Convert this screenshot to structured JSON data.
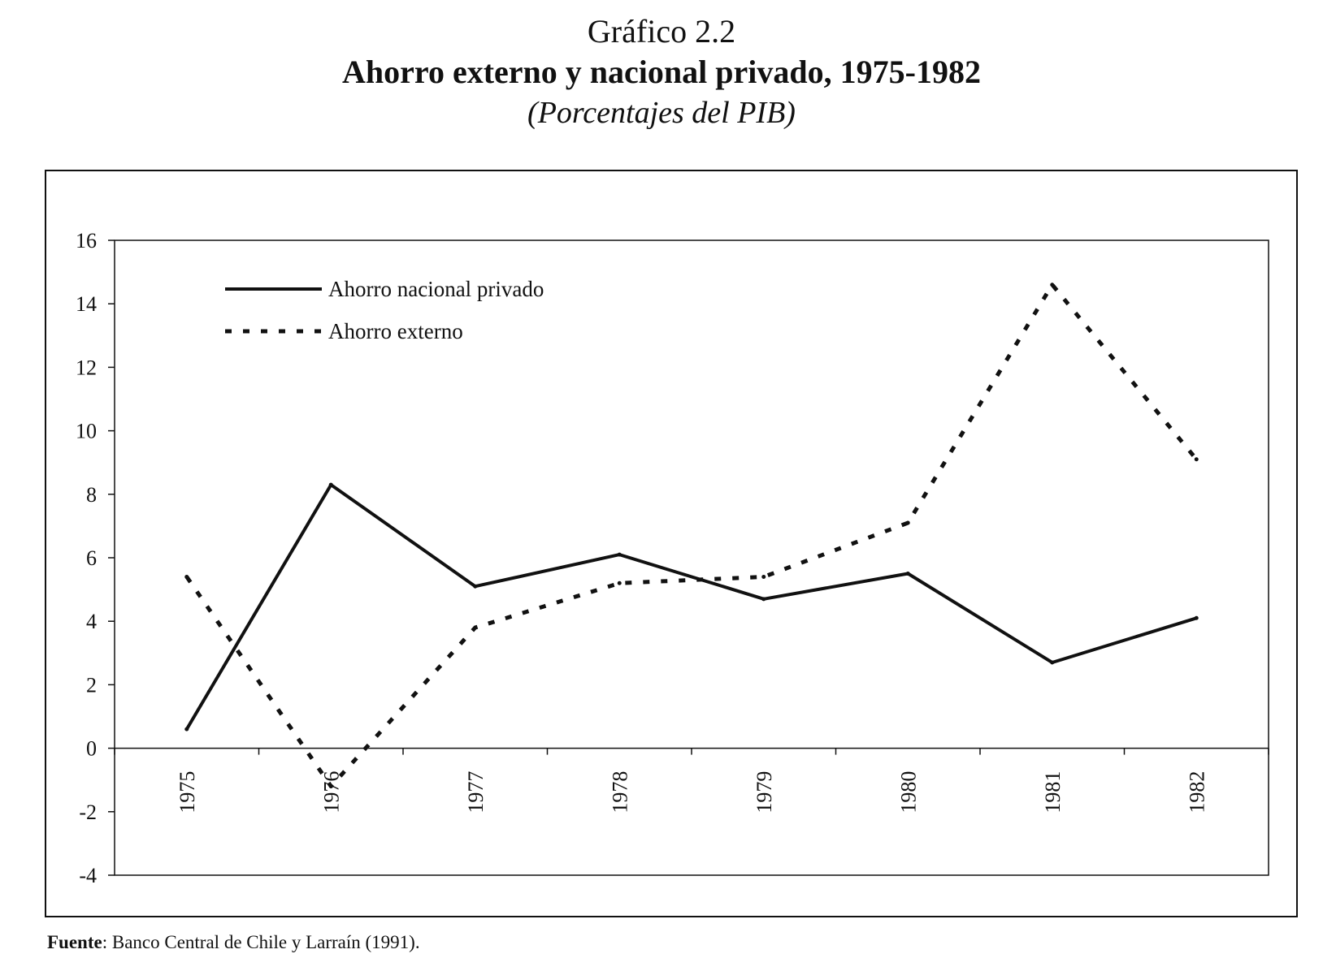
{
  "header": {
    "label": "Gráfico 2.2",
    "title": "Ahorro externo y nacional privado, 1975-1982",
    "subtitle": "(Porcentajes del PIB)"
  },
  "chart_data": {
    "type": "line",
    "x": [
      "1975",
      "1976",
      "1977",
      "1978",
      "1979",
      "1980",
      "1981",
      "1982"
    ],
    "ylim": [
      -4,
      16
    ],
    "yticks": [
      "16",
      "14",
      "12",
      "10",
      "8",
      "6",
      "4",
      "2",
      "0",
      "-2",
      "-4"
    ],
    "grid": false,
    "legend_position": "top-left",
    "series": [
      {
        "name": "Ahorro nacional privado",
        "style": "solid",
        "color": "#111111",
        "values": [
          0.6,
          8.3,
          5.1,
          6.1,
          4.7,
          5.5,
          2.7,
          4.1
        ]
      },
      {
        "name": "Ahorro externo",
        "style": "dotted",
        "color": "#111111",
        "values": [
          5.4,
          -1.2,
          3.8,
          5.2,
          5.4,
          7.1,
          14.6,
          9.1
        ]
      }
    ]
  },
  "source": {
    "label": "Fuente",
    "text": ": Banco Central de Chile y Larraín (1991)."
  }
}
